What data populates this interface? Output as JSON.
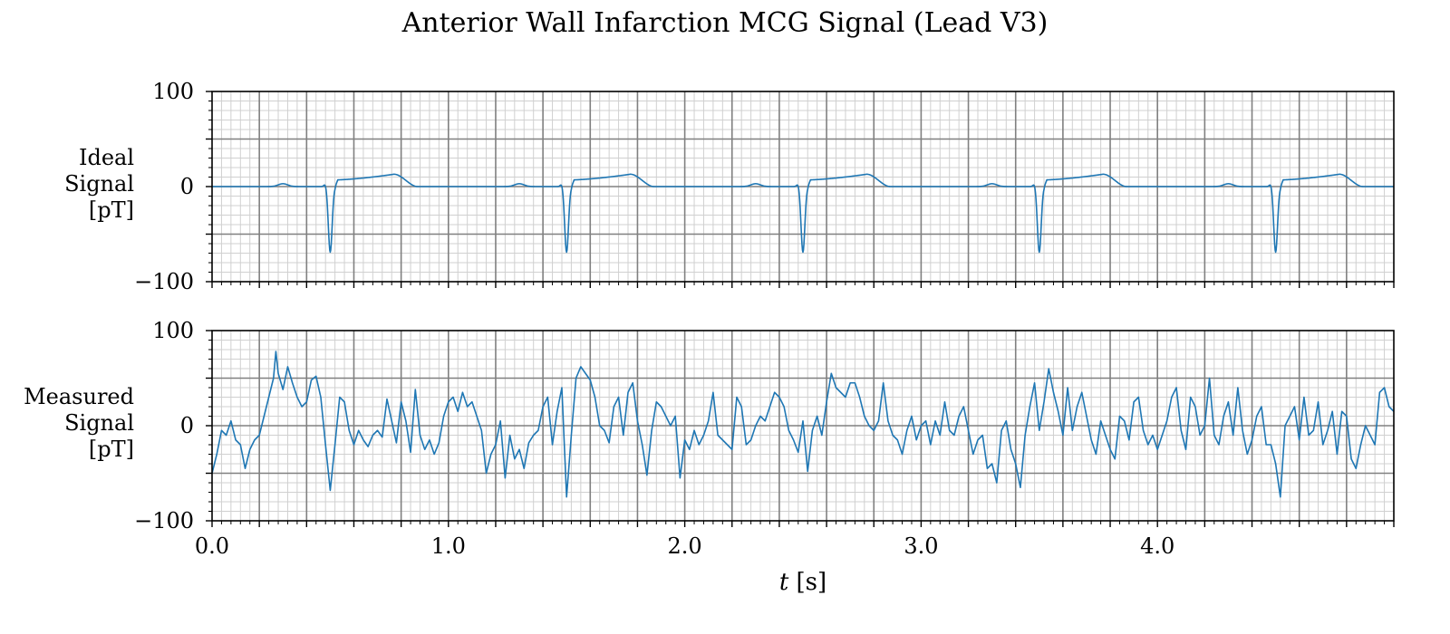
{
  "figure": {
    "title": "Anterior Wall Infarction MCG Signal (Lead V3)",
    "xlabel_var": "t",
    "xlabel_unit": " [s]"
  },
  "colors": {
    "line": "#1f77b4",
    "major_grid": "#808080",
    "minor_grid": "#d0d0d0",
    "axis": "#000000"
  },
  "chart_data": [
    {
      "type": "line",
      "name": "ideal",
      "ylabel_lines": [
        "Ideal",
        "Signal",
        "[pT]"
      ],
      "xlim": [
        0,
        5
      ],
      "ylim": [
        -100,
        100
      ],
      "yticks": [
        -100,
        0,
        100
      ],
      "ytick_labels": [
        "−100",
        "0",
        "100"
      ],
      "grid": true,
      "beat_times": [
        0.5,
        1.5,
        2.5,
        3.5,
        4.5
      ],
      "features": {
        "p_wave": {
          "offset_s": -0.2,
          "amplitude_pT": 3
        },
        "q_notch": {
          "offset_s": -0.02,
          "amplitude_pT": 3
        },
        "qs_trough": {
          "offset_s": 0.0,
          "amplitude_pT": -69
        },
        "st_level": {
          "amplitude_pT": 7
        },
        "t_wave": {
          "offset_s": 0.27,
          "amplitude_pT": 13
        },
        "baseline_pT": 0
      }
    },
    {
      "type": "line",
      "name": "measured",
      "ylabel_lines": [
        "Measured",
        "Signal",
        "[pT]"
      ],
      "xlim": [
        0,
        5
      ],
      "ylim": [
        -100,
        100
      ],
      "yticks": [
        -100,
        0,
        100
      ],
      "ytick_labels": [
        "−100",
        "0",
        "100"
      ],
      "xticks": [
        0,
        1,
        2,
        3,
        4
      ],
      "xtick_labels": [
        "0.0",
        "1.0",
        "2.0",
        "3.0",
        "4.0"
      ],
      "grid": true,
      "x": [
        0.0,
        0.02,
        0.04,
        0.06,
        0.08,
        0.1,
        0.12,
        0.14,
        0.16,
        0.18,
        0.2,
        0.22,
        0.24,
        0.26,
        0.27,
        0.28,
        0.3,
        0.32,
        0.34,
        0.36,
        0.38,
        0.4,
        0.42,
        0.44,
        0.46,
        0.48,
        0.5,
        0.52,
        0.54,
        0.56,
        0.58,
        0.6,
        0.62,
        0.64,
        0.66,
        0.68,
        0.7,
        0.72,
        0.74,
        0.76,
        0.78,
        0.8,
        0.82,
        0.84,
        0.86,
        0.88,
        0.9,
        0.92,
        0.94,
        0.96,
        0.98,
        1.0,
        1.02,
        1.04,
        1.06,
        1.08,
        1.1,
        1.12,
        1.14,
        1.16,
        1.18,
        1.2,
        1.22,
        1.24,
        1.26,
        1.28,
        1.3,
        1.32,
        1.34,
        1.36,
        1.38,
        1.4,
        1.42,
        1.44,
        1.46,
        1.48,
        1.5,
        1.52,
        1.54,
        1.56,
        1.58,
        1.6,
        1.62,
        1.64,
        1.66,
        1.68,
        1.7,
        1.72,
        1.74,
        1.76,
        1.78,
        1.8,
        1.82,
        1.84,
        1.86,
        1.88,
        1.9,
        1.92,
        1.94,
        1.96,
        1.98,
        2.0,
        2.02,
        2.04,
        2.06,
        2.08,
        2.1,
        2.12,
        2.14,
        2.16,
        2.18,
        2.2,
        2.22,
        2.24,
        2.26,
        2.28,
        2.3,
        2.32,
        2.34,
        2.36,
        2.38,
        2.4,
        2.42,
        2.44,
        2.46,
        2.48,
        2.5,
        2.52,
        2.54,
        2.56,
        2.58,
        2.6,
        2.62,
        2.64,
        2.66,
        2.68,
        2.7,
        2.72,
        2.74,
        2.76,
        2.78,
        2.8,
        2.82,
        2.84,
        2.86,
        2.88,
        2.9,
        2.92,
        2.94,
        2.96,
        2.98,
        3.0,
        3.02,
        3.04,
        3.06,
        3.08,
        3.1,
        3.12,
        3.14,
        3.16,
        3.18,
        3.2,
        3.22,
        3.24,
        3.26,
        3.28,
        3.3,
        3.32,
        3.34,
        3.36,
        3.38,
        3.4,
        3.42,
        3.44,
        3.46,
        3.48,
        3.5,
        3.52,
        3.54,
        3.56,
        3.58,
        3.6,
        3.62,
        3.64,
        3.66,
        3.68,
        3.7,
        3.72,
        3.74,
        3.76,
        3.78,
        3.8,
        3.82,
        3.84,
        3.86,
        3.88,
        3.9,
        3.92,
        3.94,
        3.96,
        3.98,
        4.0,
        4.02,
        4.04,
        4.06,
        4.08,
        4.1,
        4.12,
        4.14,
        4.16,
        4.18,
        4.2,
        4.22,
        4.24,
        4.26,
        4.28,
        4.3,
        4.32,
        4.34,
        4.36,
        4.38,
        4.4,
        4.42,
        4.44,
        4.46,
        4.48,
        4.5,
        4.52,
        4.54,
        4.56,
        4.58,
        4.6,
        4.62,
        4.64,
        4.66,
        4.68,
        4.7,
        4.72,
        4.74,
        4.76,
        4.78,
        4.8,
        4.82,
        4.84,
        4.86,
        4.88,
        4.9,
        4.92,
        4.94,
        4.96,
        4.98,
        5.0
      ],
      "y": [
        -50,
        -30,
        -5,
        -10,
        5,
        -15,
        -20,
        -45,
        -25,
        -15,
        -10,
        10,
        30,
        50,
        78,
        55,
        38,
        62,
        45,
        30,
        20,
        25,
        48,
        52,
        30,
        -20,
        -68,
        -20,
        30,
        25,
        -5,
        -20,
        -5,
        -15,
        -22,
        -10,
        -5,
        -12,
        28,
        5,
        -18,
        25,
        5,
        -28,
        38,
        -10,
        -25,
        -15,
        -30,
        -18,
        10,
        25,
        30,
        15,
        35,
        20,
        25,
        10,
        -5,
        -50,
        -30,
        -20,
        5,
        -55,
        -10,
        -35,
        -25,
        -45,
        -18,
        -10,
        -5,
        20,
        30,
        -20,
        15,
        40,
        -75,
        -10,
        50,
        62,
        55,
        48,
        30,
        0,
        -5,
        -18,
        20,
        30,
        -10,
        35,
        45,
        5,
        -20,
        -52,
        -5,
        25,
        20,
        10,
        0,
        10,
        -55,
        -15,
        -25,
        -5,
        -20,
        -10,
        5,
        35,
        -10,
        -15,
        -20,
        -25,
        30,
        20,
        -20,
        -15,
        0,
        10,
        5,
        20,
        35,
        30,
        20,
        -5,
        -15,
        -28,
        5,
        -48,
        -5,
        10,
        -10,
        25,
        55,
        40,
        35,
        30,
        45,
        45,
        30,
        10,
        0,
        -5,
        5,
        45,
        5,
        -10,
        -15,
        -30,
        -5,
        10,
        -15,
        0,
        5,
        -20,
        5,
        -10,
        25,
        -5,
        -10,
        10,
        20,
        -5,
        -30,
        -15,
        -10,
        -45,
        -40,
        -60,
        -5,
        5,
        -25,
        -40,
        -65,
        -10,
        20,
        45,
        -5,
        25,
        60,
        35,
        15,
        -10,
        40,
        -5,
        20,
        35,
        10,
        -15,
        -30,
        5,
        -10,
        -25,
        -35,
        10,
        5,
        -15,
        25,
        30,
        -5,
        -20,
        -10,
        -25,
        -10,
        5,
        30,
        40,
        -5,
        -25,
        30,
        20,
        -10,
        0,
        50,
        -10,
        -20,
        10,
        25,
        -10,
        40,
        -5,
        -30,
        -15,
        10,
        20,
        -20,
        -20,
        -40,
        -75,
        0,
        10,
        20,
        -15,
        30,
        -10,
        -5,
        25,
        -20,
        -5,
        15,
        -30,
        15,
        10,
        -35,
        -45,
        -20,
        0,
        -10,
        -20,
        35,
        40,
        20,
        15
      ]
    }
  ]
}
